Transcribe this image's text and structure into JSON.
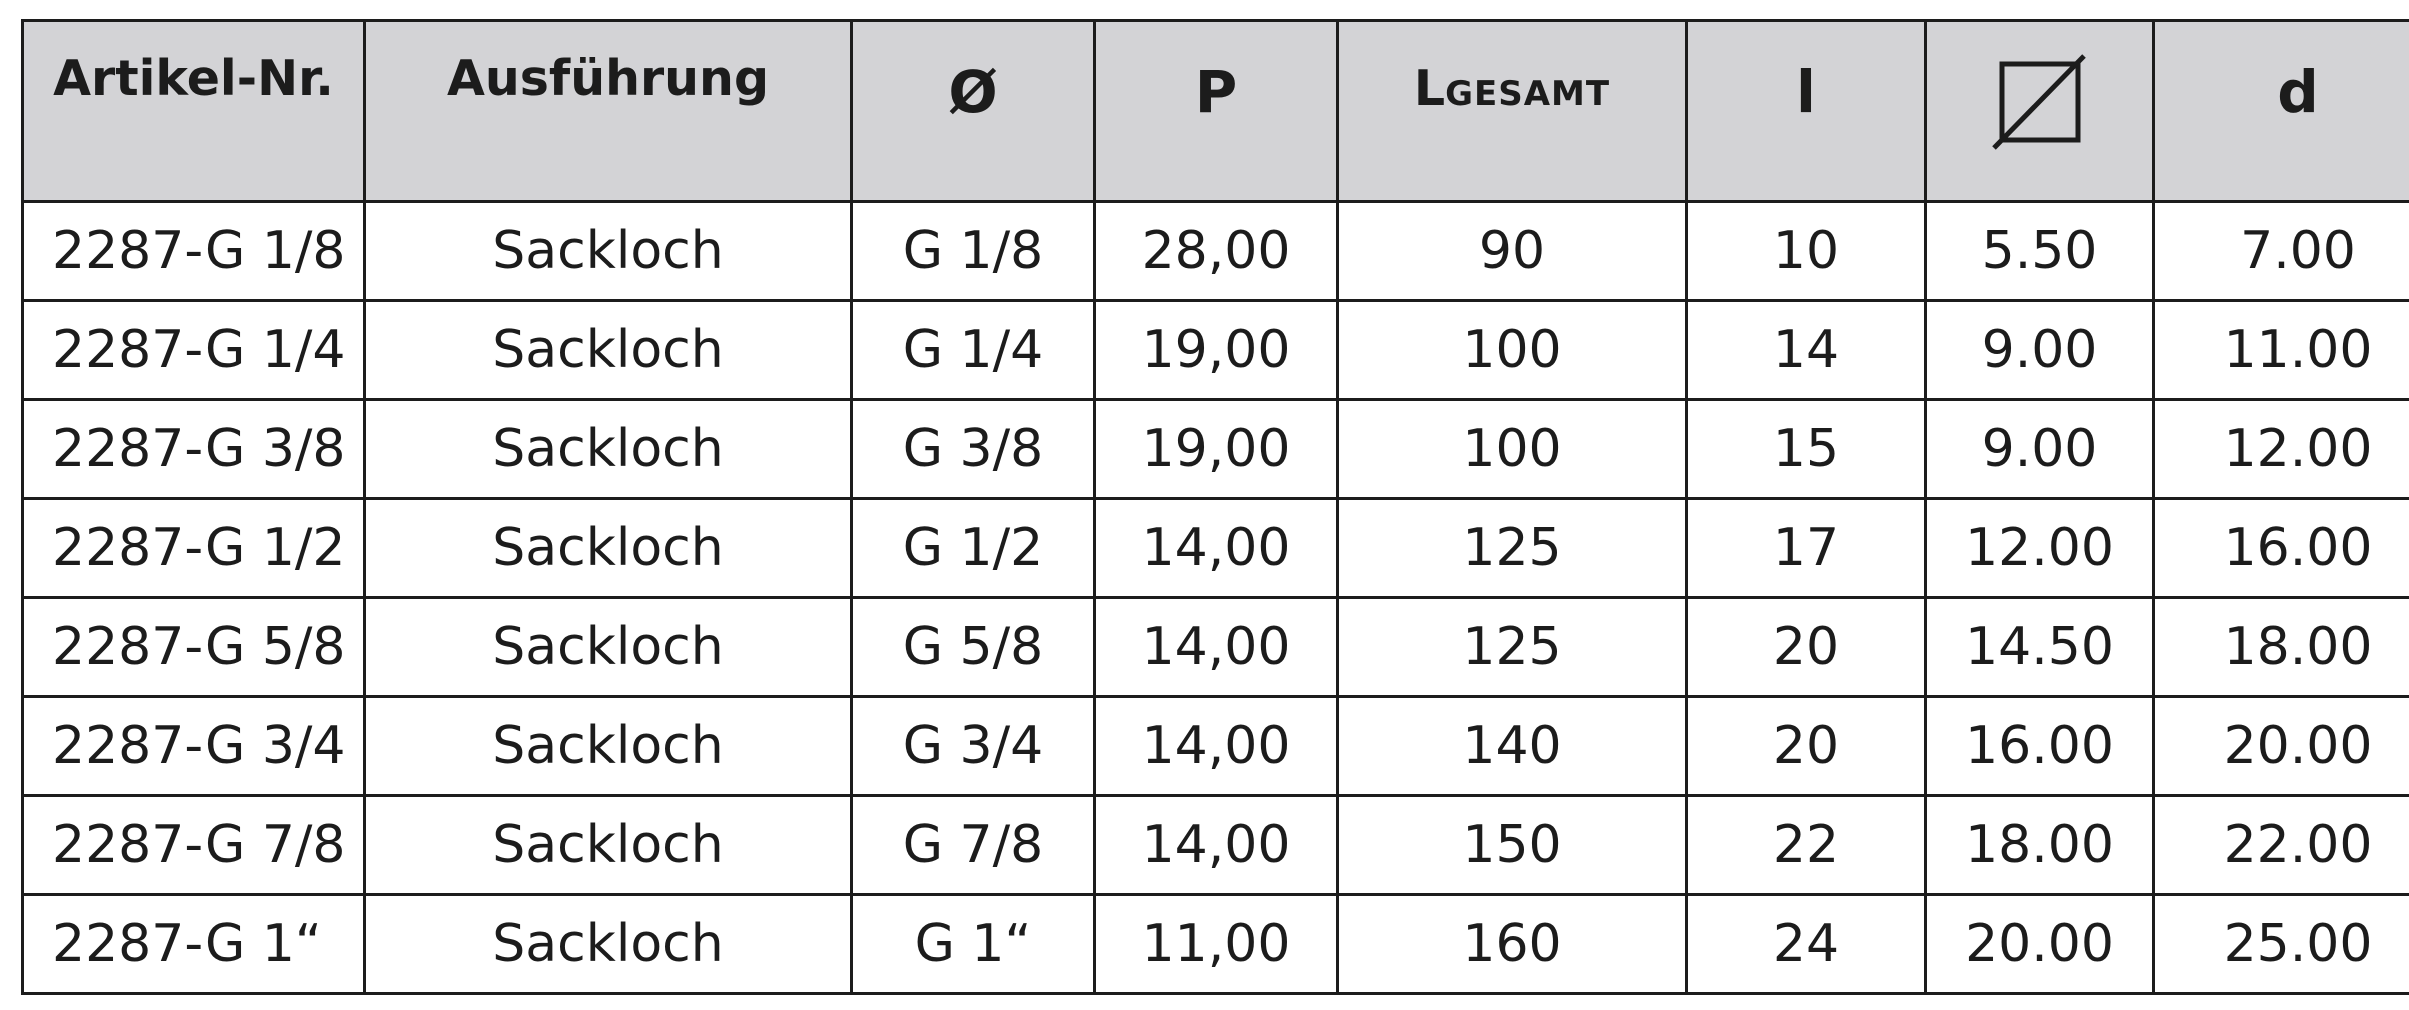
{
  "table": {
    "headers": {
      "artikel": "Artikel-Nr.",
      "ausfuehrung": "Ausführung",
      "diameter": "Ø",
      "p": "P",
      "l_gesamt_main": "L",
      "l_gesamt_sub": "GESAMT",
      "l": "l",
      "square_icon": "square-diagonal-icon",
      "d": "d"
    },
    "rows": [
      [
        "2287-G 1/8",
        "Sackloch",
        "G 1/8",
        "28,00",
        "90",
        "10",
        "5.50",
        "7.00"
      ],
      [
        "2287-G 1/4",
        "Sackloch",
        "G 1/4",
        "19,00",
        "100",
        "14",
        "9.00",
        "11.00"
      ],
      [
        "2287-G 3/8",
        "Sackloch",
        "G 3/8",
        "19,00",
        "100",
        "15",
        "9.00",
        "12.00"
      ],
      [
        "2287-G 1/2",
        "Sackloch",
        "G 1/2",
        "14,00",
        "125",
        "17",
        "12.00",
        "16.00"
      ],
      [
        "2287-G 5/8",
        "Sackloch",
        "G 5/8",
        "14,00",
        "125",
        "20",
        "14.50",
        "18.00"
      ],
      [
        "2287-G 3/4",
        "Sackloch",
        "G 3/4",
        "14,00",
        "140",
        "20",
        "16.00",
        "20.00"
      ],
      [
        "2287-G 7/8",
        "Sackloch",
        "G 7/8",
        "14,00",
        "150",
        "22",
        "18.00",
        "22.00"
      ],
      [
        "2287-G 1“",
        "Sackloch",
        "G 1“",
        "11,00",
        "160",
        "24",
        "20.00",
        "25.00"
      ]
    ]
  }
}
